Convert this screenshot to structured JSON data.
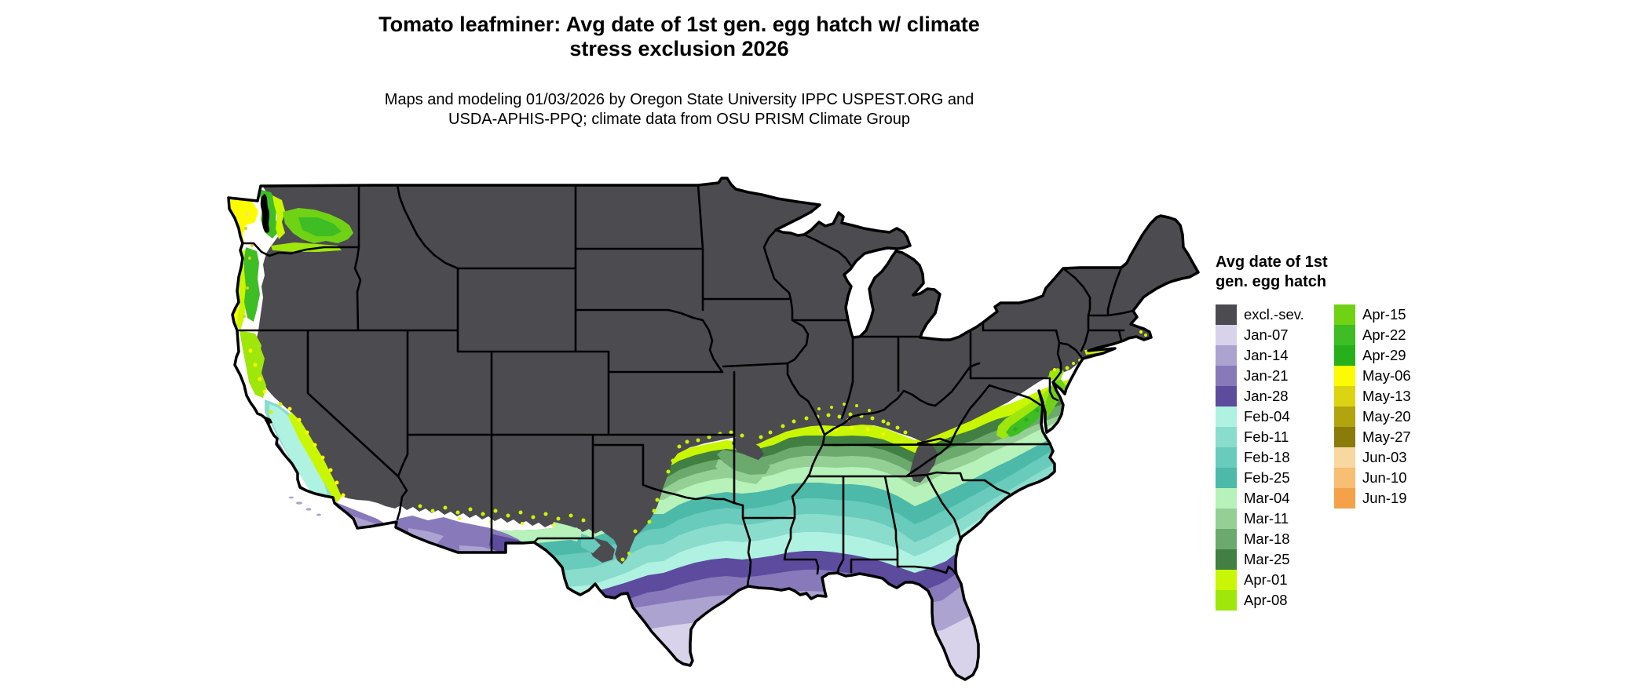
{
  "title": {
    "line1": "Tomato leafminer: Avg date of 1st gen. egg hatch w/ climate",
    "line2": "stress exclusion 2026"
  },
  "subtitle": {
    "line1": "Maps and modeling 01/03/2026 by Oregon State University IPPC USPEST.ORG and",
    "line2": "USDA-APHIS-PPQ; climate data from OSU PRISM Climate Group"
  },
  "legend": {
    "title_line1": "Avg date of 1st",
    "title_line2": "gen. egg hatch",
    "column1": [
      {
        "label": "excl.-sev.",
        "color_key": "excl"
      },
      {
        "label": "Jan-07",
        "color_key": "jan07"
      },
      {
        "label": "Jan-14",
        "color_key": "jan14"
      },
      {
        "label": "Jan-21",
        "color_key": "jan21"
      },
      {
        "label": "Jan-28",
        "color_key": "jan28"
      },
      {
        "label": "Feb-04",
        "color_key": "feb04"
      },
      {
        "label": "Feb-11",
        "color_key": "feb11"
      },
      {
        "label": "Feb-18",
        "color_key": "feb18"
      },
      {
        "label": "Feb-25",
        "color_key": "feb25"
      },
      {
        "label": "Mar-04",
        "color_key": "mar04"
      },
      {
        "label": "Mar-11",
        "color_key": "mar11"
      },
      {
        "label": "Mar-18",
        "color_key": "mar18"
      },
      {
        "label": "Mar-25",
        "color_key": "mar25"
      },
      {
        "label": "Apr-01",
        "color_key": "apr01"
      },
      {
        "label": "Apr-08",
        "color_key": "apr08"
      }
    ],
    "column2": [
      {
        "label": "Apr-15",
        "color_key": "apr15"
      },
      {
        "label": "Apr-22",
        "color_key": "apr22"
      },
      {
        "label": "Apr-29",
        "color_key": "apr29"
      },
      {
        "label": "May-06",
        "color_key": "may06"
      },
      {
        "label": "May-13",
        "color_key": "may13"
      },
      {
        "label": "May-20",
        "color_key": "may20"
      },
      {
        "label": "May-27",
        "color_key": "may27"
      },
      {
        "label": "Jun-03",
        "color_key": "jun03"
      },
      {
        "label": "Jun-10",
        "color_key": "jun10"
      },
      {
        "label": "Jun-19",
        "color_key": "jun19"
      }
    ]
  },
  "map": {
    "background": "#FFFFFF",
    "state_border_color": "#000000",
    "water_color": "#000000",
    "palette": {
      "excl": "#4C4B50",
      "jan07": "#D8D2EA",
      "jan14": "#ACA3D0",
      "jan21": "#8779BA",
      "jan28": "#5D4B9E",
      "feb04": "#AFF2E2",
      "feb11": "#8ADCCD",
      "feb18": "#68CBBB",
      "feb25": "#4CB9A9",
      "mar04": "#B6F2BA",
      "mar11": "#94CF94",
      "mar18": "#6BAA6C",
      "mar25": "#417F42",
      "apr01": "#C9F603",
      "apr08": "#9FE70B",
      "apr15": "#70D215",
      "apr22": "#3EBD24",
      "apr29": "#27B01C",
      "may06": "#FDFB02",
      "may13": "#DCD313",
      "may20": "#B2A40F",
      "may27": "#8A7B0B",
      "jun03": "#F8D8A0",
      "jun10": "#F8BE73",
      "jun19": "#F5A14A",
      "black": "#000000",
      "white": "#FFFFFF"
    }
  }
}
